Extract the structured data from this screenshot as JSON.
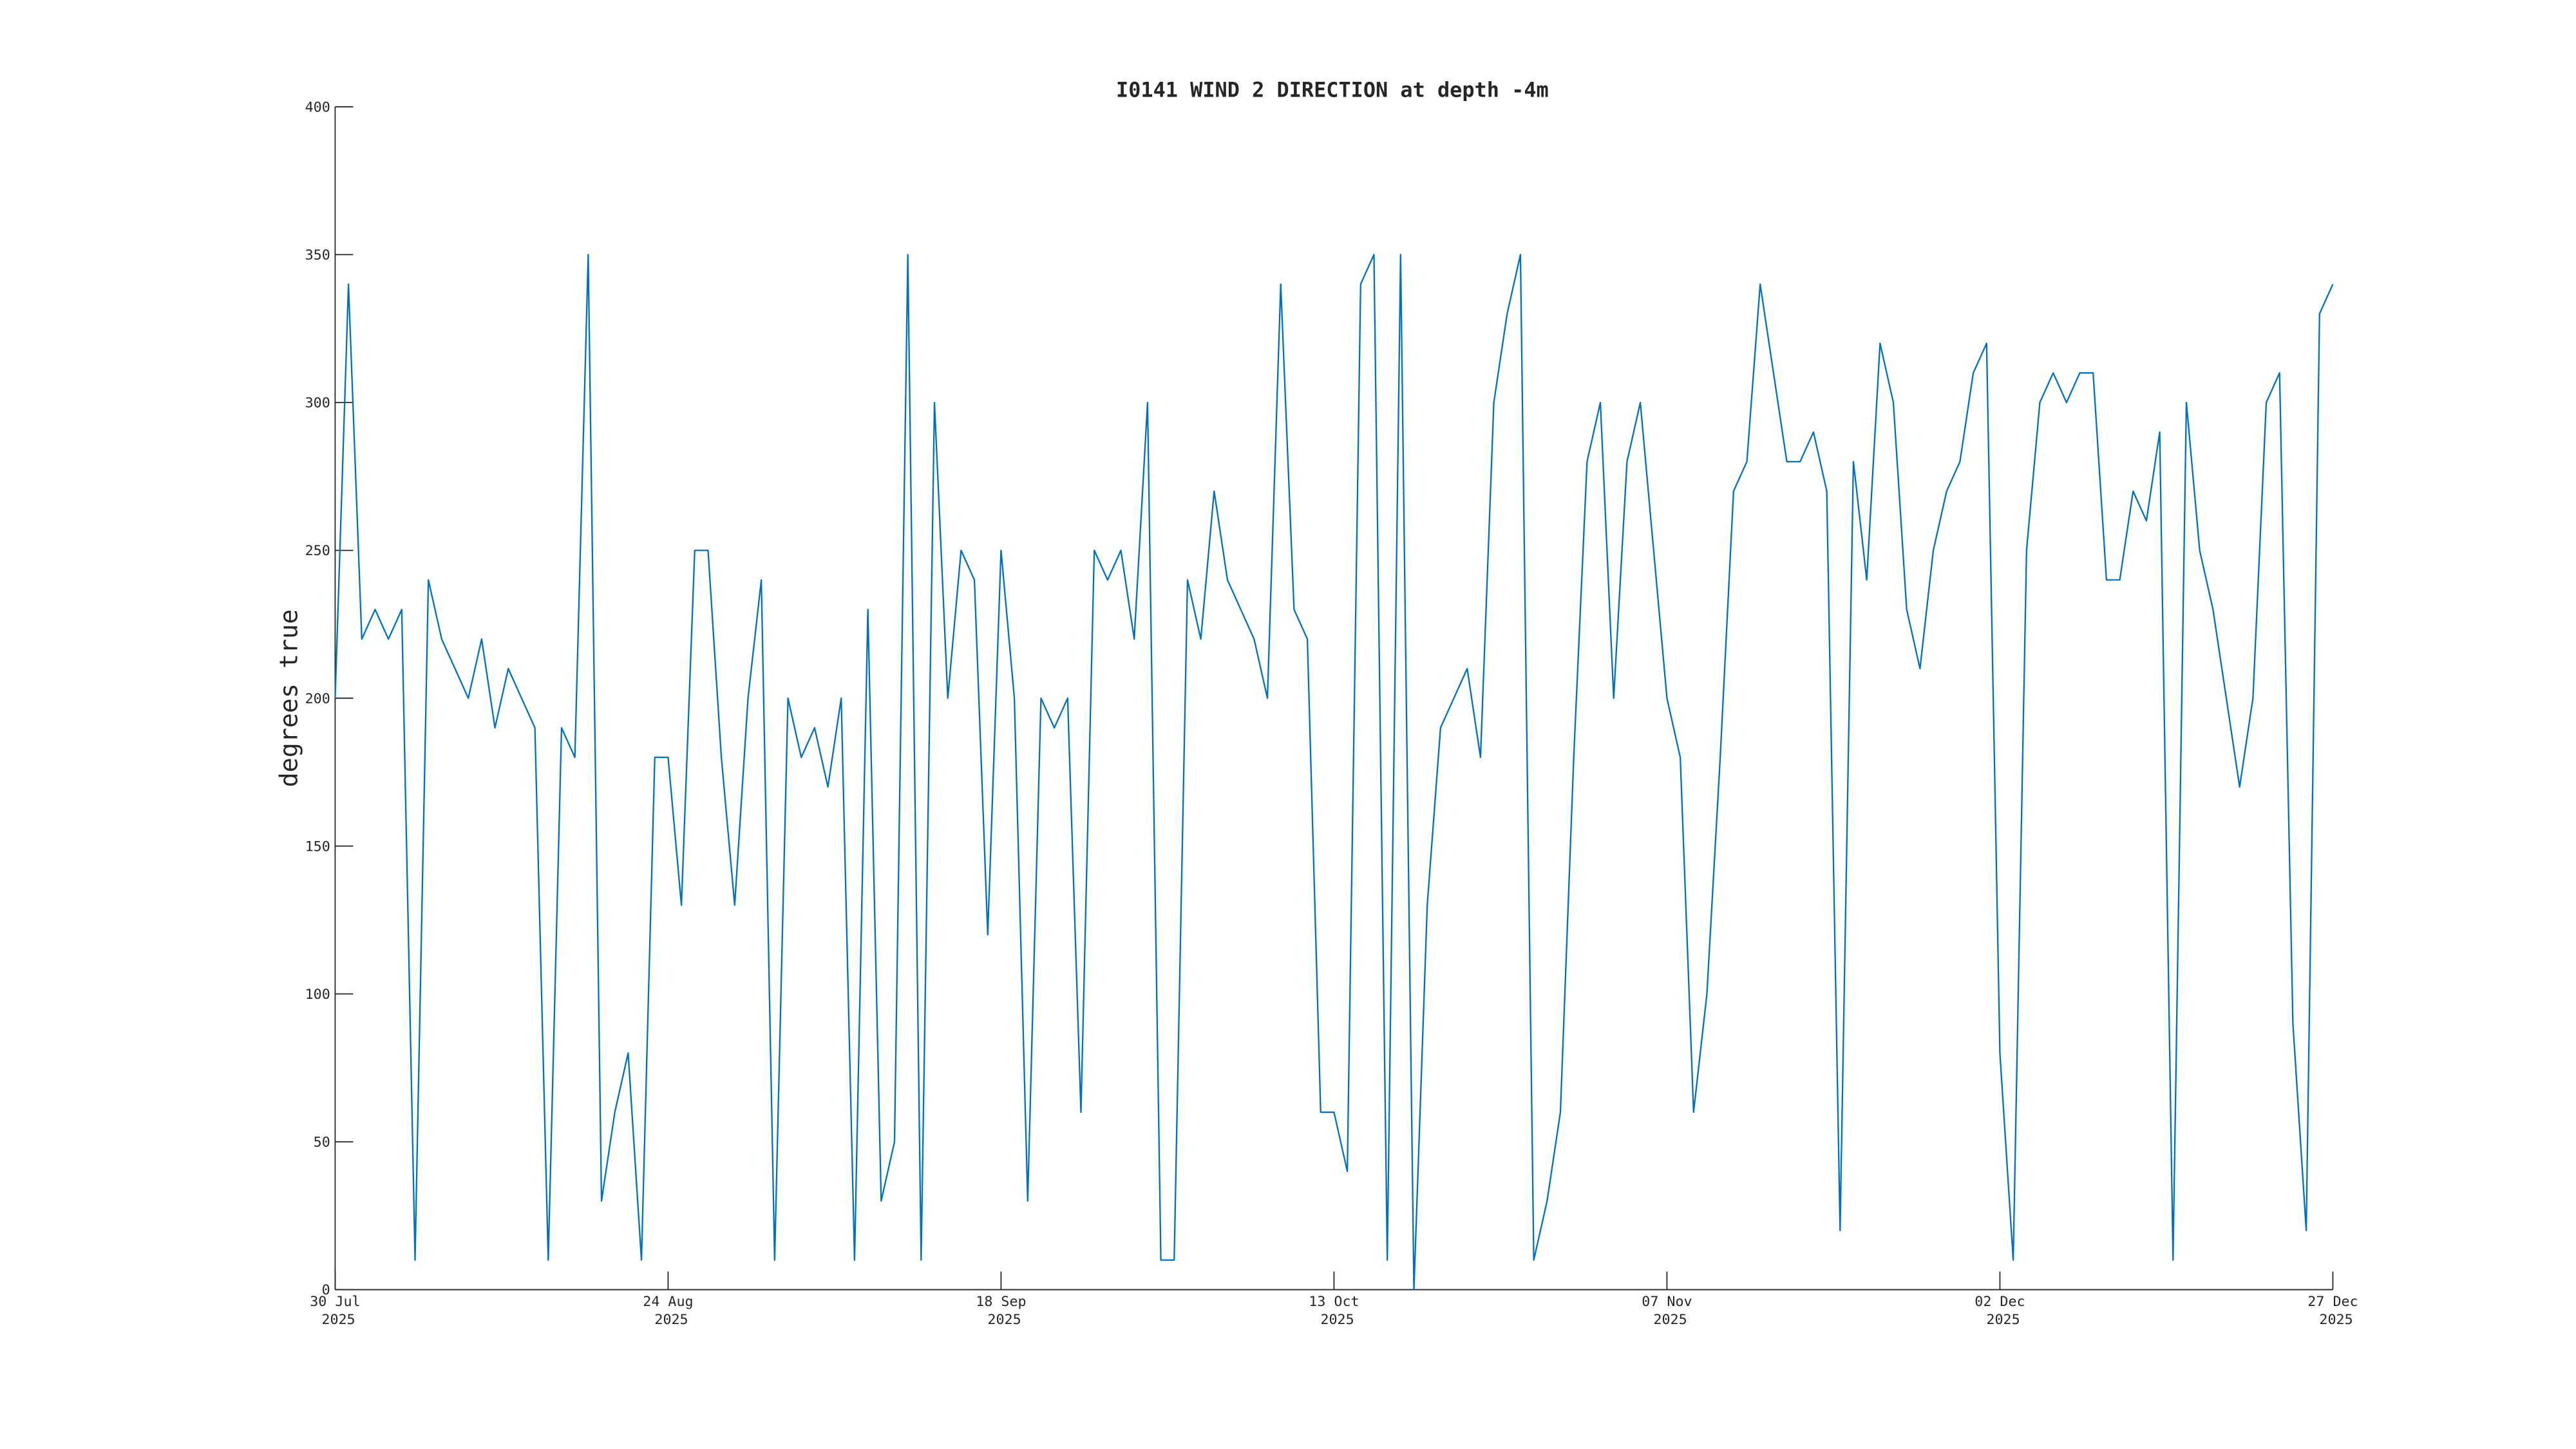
{
  "chart_data": {
    "type": "line",
    "title": "I0141 WIND 2 DIRECTION at depth -4m",
    "y_label": "degrees true",
    "color": "#0072bd",
    "grid": false,
    "xlim": [
      "2025-07-30",
      "2025-12-27"
    ],
    "xticks": [
      {
        "value": "2025-07-30",
        "label": [
          "30 Jul",
          "2025"
        ]
      },
      {
        "value": "2025-08-24",
        "label": [
          "24 Aug",
          "2025"
        ]
      },
      {
        "value": "2025-09-18",
        "label": [
          "18 Sep",
          "2025"
        ]
      },
      {
        "value": "2025-10-13",
        "label": [
          "13 Oct",
          "2025"
        ]
      },
      {
        "value": "2025-11-07",
        "label": [
          "07 Nov",
          "2025"
        ]
      },
      {
        "value": "2025-12-02",
        "label": [
          "02 Dec",
          "2025"
        ]
      },
      {
        "value": "2025-12-27",
        "label": [
          "27 Dec",
          "2025"
        ]
      }
    ],
    "ylim": [
      0,
      400
    ],
    "yticks": [
      0,
      50,
      100,
      150,
      200,
      250,
      300,
      350,
      400
    ],
    "x": [
      "2025-07-30",
      "2025-07-31",
      "2025-08-01",
      "2025-08-02",
      "2025-08-03",
      "2025-08-04",
      "2025-08-05",
      "2025-08-06",
      "2025-08-07",
      "2025-08-08",
      "2025-08-09",
      "2025-08-10",
      "2025-08-11",
      "2025-08-12",
      "2025-08-13",
      "2025-08-14",
      "2025-08-15",
      "2025-08-16",
      "2025-08-17",
      "2025-08-18",
      "2025-08-19",
      "2025-08-20",
      "2025-08-21",
      "2025-08-22",
      "2025-08-23",
      "2025-08-24",
      "2025-08-25",
      "2025-08-26",
      "2025-08-27",
      "2025-08-28",
      "2025-08-29",
      "2025-08-30",
      "2025-08-31",
      "2025-09-01",
      "2025-09-02",
      "2025-09-03",
      "2025-09-04",
      "2025-09-05",
      "2025-09-06",
      "2025-09-07",
      "2025-09-08",
      "2025-09-09",
      "2025-09-10",
      "2025-09-11",
      "2025-09-12",
      "2025-09-13",
      "2025-09-14",
      "2025-09-15",
      "2025-09-16",
      "2025-09-17",
      "2025-09-18",
      "2025-09-19",
      "2025-09-20",
      "2025-09-21",
      "2025-09-22",
      "2025-09-23",
      "2025-09-24",
      "2025-09-25",
      "2025-09-26",
      "2025-09-27",
      "2025-09-28",
      "2025-09-29",
      "2025-09-30",
      "2025-10-01",
      "2025-10-02",
      "2025-10-03",
      "2025-10-04",
      "2025-10-05",
      "2025-10-06",
      "2025-10-07",
      "2025-10-08",
      "2025-10-09",
      "2025-10-10",
      "2025-10-11",
      "2025-10-12",
      "2025-10-13",
      "2025-10-14",
      "2025-10-15",
      "2025-10-16",
      "2025-10-17",
      "2025-10-18",
      "2025-10-19",
      "2025-10-20",
      "2025-10-21",
      "2025-10-22",
      "2025-10-23",
      "2025-10-24",
      "2025-10-25",
      "2025-10-26",
      "2025-10-27",
      "2025-10-28",
      "2025-10-29",
      "2025-10-30",
      "2025-10-31",
      "2025-11-01",
      "2025-11-02",
      "2025-11-03",
      "2025-11-04",
      "2025-11-05",
      "2025-11-06",
      "2025-11-07",
      "2025-11-08",
      "2025-11-09",
      "2025-11-10",
      "2025-11-11",
      "2025-11-12",
      "2025-11-13",
      "2025-11-14",
      "2025-11-15",
      "2025-11-16",
      "2025-11-17",
      "2025-11-18",
      "2025-11-19",
      "2025-11-20",
      "2025-11-21",
      "2025-11-22",
      "2025-11-23",
      "2025-11-24",
      "2025-11-25",
      "2025-11-26",
      "2025-11-27",
      "2025-11-28",
      "2025-11-29",
      "2025-11-30",
      "2025-12-01",
      "2025-12-02",
      "2025-12-03",
      "2025-12-04",
      "2025-12-05",
      "2025-12-06",
      "2025-12-07",
      "2025-12-08",
      "2025-12-09",
      "2025-12-10",
      "2025-12-11",
      "2025-12-12",
      "2025-12-13",
      "2025-12-14",
      "2025-12-15",
      "2025-12-16",
      "2025-12-17",
      "2025-12-18",
      "2025-12-19",
      "2025-12-20",
      "2025-12-21",
      "2025-12-22",
      "2025-12-23",
      "2025-12-24",
      "2025-12-25",
      "2025-12-26",
      "2025-12-27"
    ],
    "values": [
      200,
      340,
      220,
      230,
      220,
      230,
      10,
      240,
      220,
      210,
      200,
      220,
      190,
      210,
      200,
      190,
      10,
      190,
      180,
      350,
      30,
      60,
      80,
      10,
      180,
      180,
      130,
      250,
      250,
      180,
      130,
      200,
      240,
      10,
      200,
      180,
      190,
      170,
      200,
      10,
      230,
      30,
      50,
      350,
      10,
      300,
      200,
      250,
      240,
      120,
      250,
      200,
      30,
      200,
      190,
      200,
      60,
      250,
      240,
      250,
      220,
      300,
      10,
      10,
      240,
      220,
      270,
      240,
      230,
      220,
      200,
      340,
      230,
      220,
      60,
      60,
      40,
      340,
      350,
      10,
      350,
      0,
      130,
      190,
      200,
      210,
      180,
      300,
      330,
      350,
      10,
      30,
      60,
      180,
      280,
      300,
      200,
      280,
      300,
      250,
      200,
      180,
      60,
      100,
      180,
      270,
      280,
      340,
      310,
      280,
      280,
      290,
      270,
      20,
      280,
      240,
      320,
      300,
      230,
      210,
      250,
      270,
      280,
      310,
      320,
      80,
      10,
      250,
      300,
      310,
      300,
      310,
      310,
      240,
      240,
      270,
      260,
      290,
      10,
      300,
      250,
      230,
      200,
      170,
      200,
      300,
      310,
      90,
      20,
      330,
      340
    ]
  }
}
